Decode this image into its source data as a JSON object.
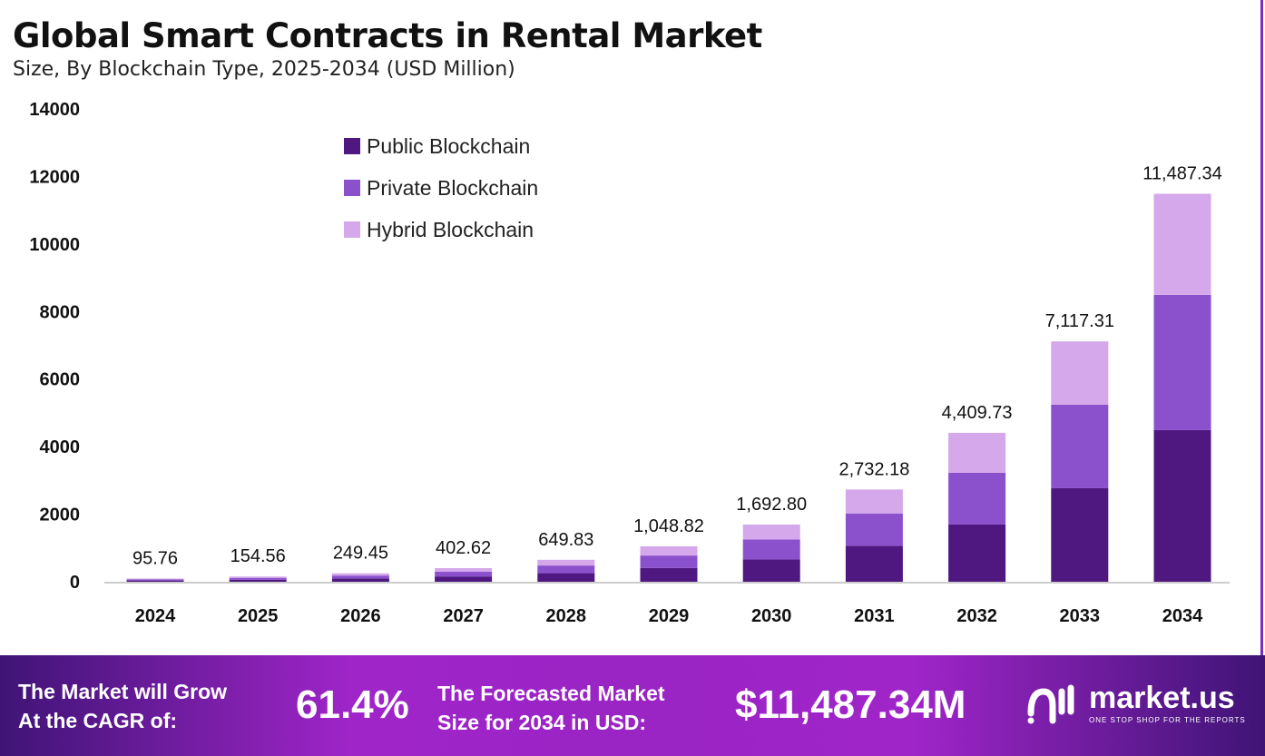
{
  "chart_data": {
    "type": "bar",
    "stacked": true,
    "title": "Global Smart Contracts in Rental Market",
    "subtitle": "Size, By Blockchain Type, 2025-2034 (USD Million)",
    "categories": [
      "2024",
      "2025",
      "2026",
      "2027",
      "2028",
      "2029",
      "2030",
      "2031",
      "2032",
      "2033",
      "2034"
    ],
    "series": [
      {
        "name": "Public Blockchain",
        "color": "#4f1780",
        "values": [
          37.35,
          60.28,
          97.29,
          157.02,
          253.43,
          409.04,
          660.19,
          1065.55,
          1694,
          2769,
          4489
        ]
      },
      {
        "name": "Private Blockchain",
        "color": "#8b51cd",
        "values": [
          33.52,
          54.1,
          87.31,
          140.92,
          227.44,
          367.09,
          592.48,
          956.26,
          1532,
          2473,
          4006
        ]
      },
      {
        "name": "Hybrid Blockchain",
        "color": "#d4a8ea",
        "values": [
          24.89,
          40.18,
          64.85,
          104.68,
          168.96,
          272.69,
          440.13,
          710.37,
          1183.73,
          1875.31,
          2992.34
        ]
      }
    ],
    "totals_labels": [
      "95.76",
      "154.56",
      "249.45",
      "402.62",
      "649.83",
      "1,048.82",
      "1,692.80",
      "2,732.18",
      "4,409.73",
      "7,117.31",
      "11,487.34"
    ],
    "yticks": [
      "0",
      "2000",
      "4000",
      "6000",
      "8000",
      "10000",
      "12000",
      "14000"
    ],
    "ylim": [
      0,
      14000
    ],
    "grid": false,
    "legend_position": "top-left"
  },
  "footer": {
    "cagr_label_1": "The Market will Grow",
    "cagr_label_2": "At the CAGR of:",
    "cagr_value": "61.4%",
    "forecast_label_1": "The Forecasted Market",
    "forecast_label_2": "Size for 2034 in USD:",
    "forecast_value": "$11,487.34M",
    "logo_name": "market.us",
    "logo_tagline": "ONE STOP SHOP FOR THE REPORTS"
  }
}
